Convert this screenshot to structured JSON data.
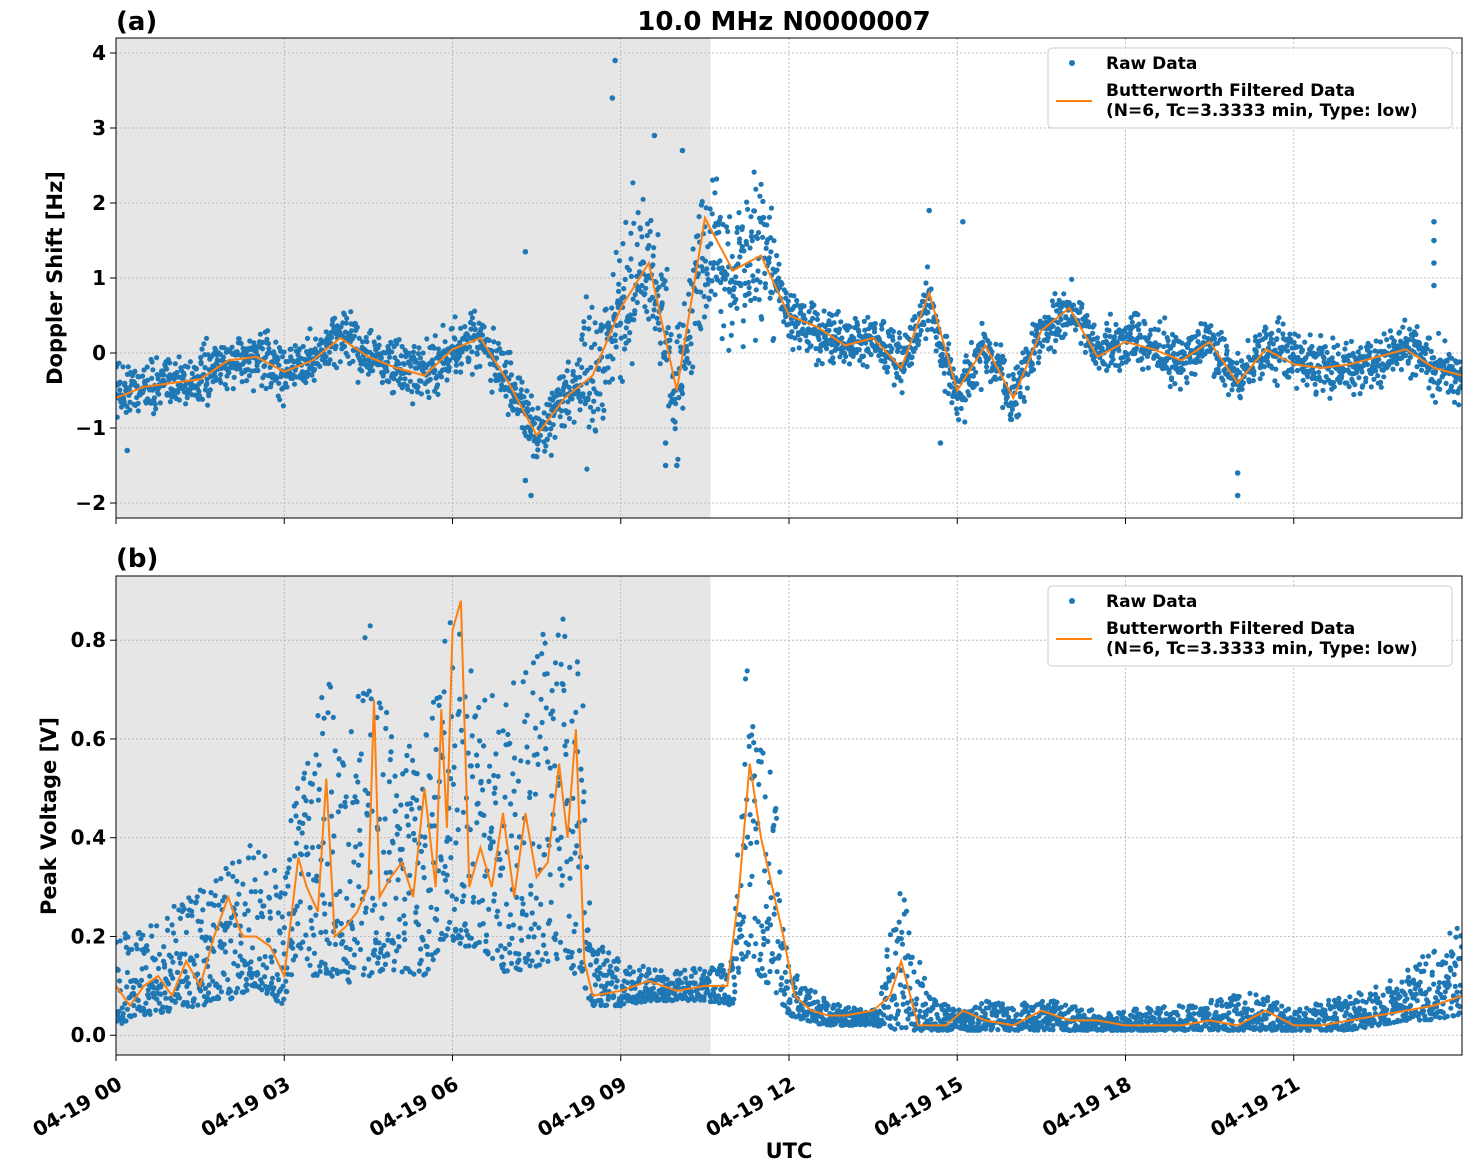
{
  "figure": {
    "title": "10.0 MHz N0000007",
    "xlabel": "UTC"
  },
  "chart_data": [
    {
      "type": "scatter",
      "panel_label": "(a)",
      "title": "10.0 MHz N0000007",
      "xlabel": "UTC",
      "ylabel": "Doppler Shift [Hz]",
      "xlim": [
        0,
        24
      ],
      "ylim": [
        -2.2,
        4.2
      ],
      "x_ticks": [
        0,
        3,
        6,
        9,
        12,
        15,
        18,
        21
      ],
      "x_tick_labels": [
        "04-19 00",
        "04-19 03",
        "04-19 06",
        "04-19 09",
        "04-19 12",
        "04-19 15",
        "04-19 18",
        "04-19 21"
      ],
      "y_ticks": [
        -2,
        -1,
        0,
        1,
        2,
        3,
        4
      ],
      "y_tick_labels": [
        "−2",
        "−1",
        "0",
        "1",
        "2",
        "3",
        "4"
      ],
      "grid": true,
      "legend_position": "upper-right",
      "shaded_span": [
        0,
        10.6
      ],
      "colors": {
        "raw": "#1f77b4",
        "filtered": "#ff7f0e",
        "shade": "#e6e6e6",
        "grid": "#b0b0b0"
      },
      "series": [
        {
          "name": "Raw Data",
          "style": "points",
          "spread_hz": 0.3,
          "x": [
            0,
            0.5,
            1,
            1.5,
            2,
            2.5,
            3,
            3.5,
            4,
            4.5,
            5,
            5.5,
            6,
            6.5,
            7,
            7.5,
            8,
            8.5,
            9,
            9.5,
            10,
            10.5,
            11,
            11.5,
            12,
            12.5,
            13,
            13.5,
            14,
            14.5,
            15,
            15.5,
            16,
            16.5,
            17,
            17.5,
            18,
            18.5,
            19,
            19.5,
            20,
            20.5,
            21,
            21.5,
            22,
            22.5,
            23,
            23.5,
            24
          ],
          "y": [
            -0.5,
            -0.45,
            -0.4,
            -0.35,
            -0.1,
            -0.05,
            -0.25,
            -0.1,
            0.25,
            -0.05,
            -0.2,
            -0.3,
            0.05,
            0.2,
            -0.4,
            -1.1,
            -0.6,
            -0.3,
            0.6,
            1.3,
            -0.6,
            1.5,
            1.0,
            1.4,
            0.5,
            0.3,
            0.1,
            0.2,
            -0.2,
            0.7,
            -0.6,
            0.1,
            -0.6,
            0.3,
            0.6,
            0.0,
            0.2,
            0.05,
            -0.1,
            0.2,
            -0.4,
            0.1,
            -0.1,
            -0.2,
            -0.2,
            -0.1,
            0.1,
            -0.2,
            -0.25
          ]
        },
        {
          "name": "Butterworth Filtered Data\n(N=6, Tc=3.3333 min, Type: low)",
          "style": "line",
          "x": [
            0,
            0.5,
            1,
            1.5,
            2,
            2.5,
            3,
            3.5,
            4,
            4.5,
            5,
            5.5,
            6,
            6.5,
            7,
            7.5,
            8,
            8.5,
            9,
            9.5,
            10,
            10.5,
            11,
            11.5,
            12,
            12.5,
            13,
            13.5,
            14,
            14.5,
            15,
            15.5,
            16,
            16.5,
            17,
            17.5,
            18,
            18.5,
            19,
            19.5,
            20,
            20.5,
            21,
            21.5,
            22,
            22.5,
            23,
            23.5,
            24
          ],
          "y": [
            -0.6,
            -0.45,
            -0.4,
            -0.35,
            -0.1,
            -0.05,
            -0.25,
            -0.1,
            0.2,
            -0.05,
            -0.2,
            -0.3,
            0.05,
            0.2,
            -0.4,
            -1.1,
            -0.6,
            -0.3,
            0.6,
            1.2,
            -0.5,
            1.8,
            1.1,
            1.3,
            0.5,
            0.35,
            0.1,
            0.2,
            -0.2,
            0.8,
            -0.5,
            0.1,
            -0.6,
            0.3,
            0.6,
            -0.05,
            0.15,
            0.05,
            -0.1,
            0.15,
            -0.4,
            0.05,
            -0.15,
            -0.2,
            -0.15,
            -0.05,
            0.05,
            -0.2,
            -0.3
          ]
        }
      ],
      "outliers": [
        {
          "x": 8.9,
          "y": 3.9
        },
        {
          "x": 8.85,
          "y": 3.4
        },
        {
          "x": 9.6,
          "y": 2.9
        },
        {
          "x": 10.1,
          "y": 2.7
        },
        {
          "x": 7.4,
          "y": -1.9
        },
        {
          "x": 7.3,
          "y": -1.7
        },
        {
          "x": 20.0,
          "y": -1.9
        },
        {
          "x": 20.0,
          "y": -1.6
        },
        {
          "x": 23.5,
          "y": 1.75
        },
        {
          "x": 23.5,
          "y": 1.5
        },
        {
          "x": 23.5,
          "y": 1.2
        },
        {
          "x": 23.5,
          "y": 0.9
        },
        {
          "x": 14.5,
          "y": 1.9
        },
        {
          "x": 15.1,
          "y": 1.75
        },
        {
          "x": 7.3,
          "y": 1.35
        },
        {
          "x": 9.8,
          "y": -1.5
        },
        {
          "x": 9.8,
          "y": -1.2
        },
        {
          "x": 10.0,
          "y": -1.5
        },
        {
          "x": 0.2,
          "y": -1.3
        },
        {
          "x": 14.7,
          "y": -1.2
        }
      ]
    },
    {
      "type": "scatter",
      "panel_label": "(b)",
      "xlabel": "UTC",
      "ylabel": "Peak Voltage [V]",
      "xlim": [
        0,
        24
      ],
      "ylim": [
        -0.04,
        0.93
      ],
      "x_ticks": [
        0,
        3,
        6,
        9,
        12,
        15,
        18,
        21
      ],
      "x_tick_labels": [
        "04-19 00",
        "04-19 03",
        "04-19 06",
        "04-19 09",
        "04-19 12",
        "04-19 15",
        "04-19 18",
        "04-19 21"
      ],
      "y_ticks": [
        0.0,
        0.2,
        0.4,
        0.6,
        0.8
      ],
      "y_tick_labels": [
        "0.0",
        "0.2",
        "0.4",
        "0.6",
        "0.8"
      ],
      "grid": true,
      "legend_position": "upper-right",
      "shaded_span": [
        0,
        10.6
      ],
      "colors": {
        "raw": "#1f77b4",
        "filtered": "#ff7f0e",
        "shade": "#e6e6e6",
        "grid": "#b0b0b0"
      },
      "series": [
        {
          "name": "Raw Data",
          "style": "points",
          "x": [
            0,
            0.5,
            1,
            1.5,
            2,
            2.5,
            3,
            3.25,
            3.5,
            3.75,
            4,
            4.5,
            5,
            5.5,
            5.9,
            6.1,
            6.5,
            7,
            7.5,
            8,
            8.3,
            8.5,
            9,
            9.5,
            10,
            10.5,
            11,
            11.2,
            11.5,
            11.8,
            12,
            12.3,
            12.6,
            13,
            13.5,
            14,
            14.5,
            15,
            15.5,
            16,
            16.5,
            17,
            17.5,
            18,
            18.5,
            19,
            19.5,
            20,
            20.5,
            21,
            21.5,
            22,
            22.5,
            23,
            23.5,
            24
          ],
          "lo": [
            0.02,
            0.04,
            0.05,
            0.06,
            0.07,
            0.1,
            0.06,
            0.18,
            0.12,
            0.12,
            0.1,
            0.12,
            0.13,
            0.12,
            0.2,
            0.18,
            0.18,
            0.12,
            0.14,
            0.16,
            0.1,
            0.06,
            0.06,
            0.07,
            0.07,
            0.07,
            0.06,
            0.15,
            0.12,
            0.08,
            0.04,
            0.03,
            0.02,
            0.02,
            0.02,
            0.01,
            0.01,
            0.01,
            0.01,
            0.01,
            0.01,
            0.01,
            0.01,
            0.01,
            0.01,
            0.01,
            0.01,
            0.01,
            0.01,
            0.01,
            0.01,
            0.01,
            0.02,
            0.03,
            0.03,
            0.04
          ],
          "hi": [
            0.2,
            0.22,
            0.26,
            0.3,
            0.35,
            0.4,
            0.3,
            0.6,
            0.55,
            0.8,
            0.55,
            0.85,
            0.58,
            0.6,
            0.84,
            0.88,
            0.68,
            0.7,
            0.82,
            0.86,
            0.75,
            0.2,
            0.15,
            0.14,
            0.13,
            0.14,
            0.15,
            0.77,
            0.6,
            0.5,
            0.14,
            0.1,
            0.08,
            0.06,
            0.05,
            0.3,
            0.08,
            0.05,
            0.07,
            0.06,
            0.08,
            0.06,
            0.05,
            0.05,
            0.06,
            0.06,
            0.07,
            0.09,
            0.08,
            0.05,
            0.07,
            0.08,
            0.1,
            0.13,
            0.18,
            0.25
          ]
        },
        {
          "name": "Butterworth Filtered Data\n(N=6, Tc=3.3333 min, Type: low)",
          "style": "line",
          "x": [
            0,
            0.25,
            0.5,
            0.75,
            1,
            1.25,
            1.5,
            1.75,
            2,
            2.25,
            2.5,
            2.75,
            3,
            3.25,
            3.4,
            3.6,
            3.75,
            3.9,
            4.1,
            4.3,
            4.5,
            4.6,
            4.7,
            4.9,
            5.1,
            5.3,
            5.5,
            5.7,
            5.8,
            5.9,
            6.0,
            6.15,
            6.3,
            6.5,
            6.7,
            6.9,
            7.1,
            7.3,
            7.5,
            7.7,
            7.9,
            8.05,
            8.2,
            8.35,
            8.5,
            9,
            9.5,
            10,
            10.5,
            10.9,
            11.1,
            11.3,
            11.5,
            11.7,
            11.9,
            12.1,
            12.4,
            12.7,
            13,
            13.5,
            13.8,
            14,
            14.3,
            14.8,
            15.1,
            15.5,
            16,
            16.5,
            17,
            17.5,
            18,
            18.5,
            19,
            19.5,
            20,
            20.5,
            21,
            21.5,
            22,
            22.5,
            23,
            23.5,
            24
          ],
          "y": [
            0.1,
            0.06,
            0.1,
            0.12,
            0.08,
            0.15,
            0.1,
            0.2,
            0.28,
            0.2,
            0.2,
            0.18,
            0.12,
            0.36,
            0.3,
            0.25,
            0.52,
            0.2,
            0.22,
            0.25,
            0.3,
            0.68,
            0.28,
            0.32,
            0.35,
            0.28,
            0.5,
            0.3,
            0.66,
            0.42,
            0.82,
            0.88,
            0.3,
            0.38,
            0.3,
            0.45,
            0.28,
            0.45,
            0.32,
            0.35,
            0.55,
            0.4,
            0.62,
            0.15,
            0.08,
            0.09,
            0.11,
            0.09,
            0.1,
            0.1,
            0.28,
            0.55,
            0.4,
            0.3,
            0.2,
            0.08,
            0.05,
            0.04,
            0.04,
            0.05,
            0.08,
            0.15,
            0.02,
            0.02,
            0.05,
            0.03,
            0.02,
            0.05,
            0.03,
            0.03,
            0.02,
            0.02,
            0.02,
            0.03,
            0.02,
            0.05,
            0.02,
            0.02,
            0.03,
            0.04,
            0.05,
            0.06,
            0.08
          ]
        }
      ]
    }
  ]
}
